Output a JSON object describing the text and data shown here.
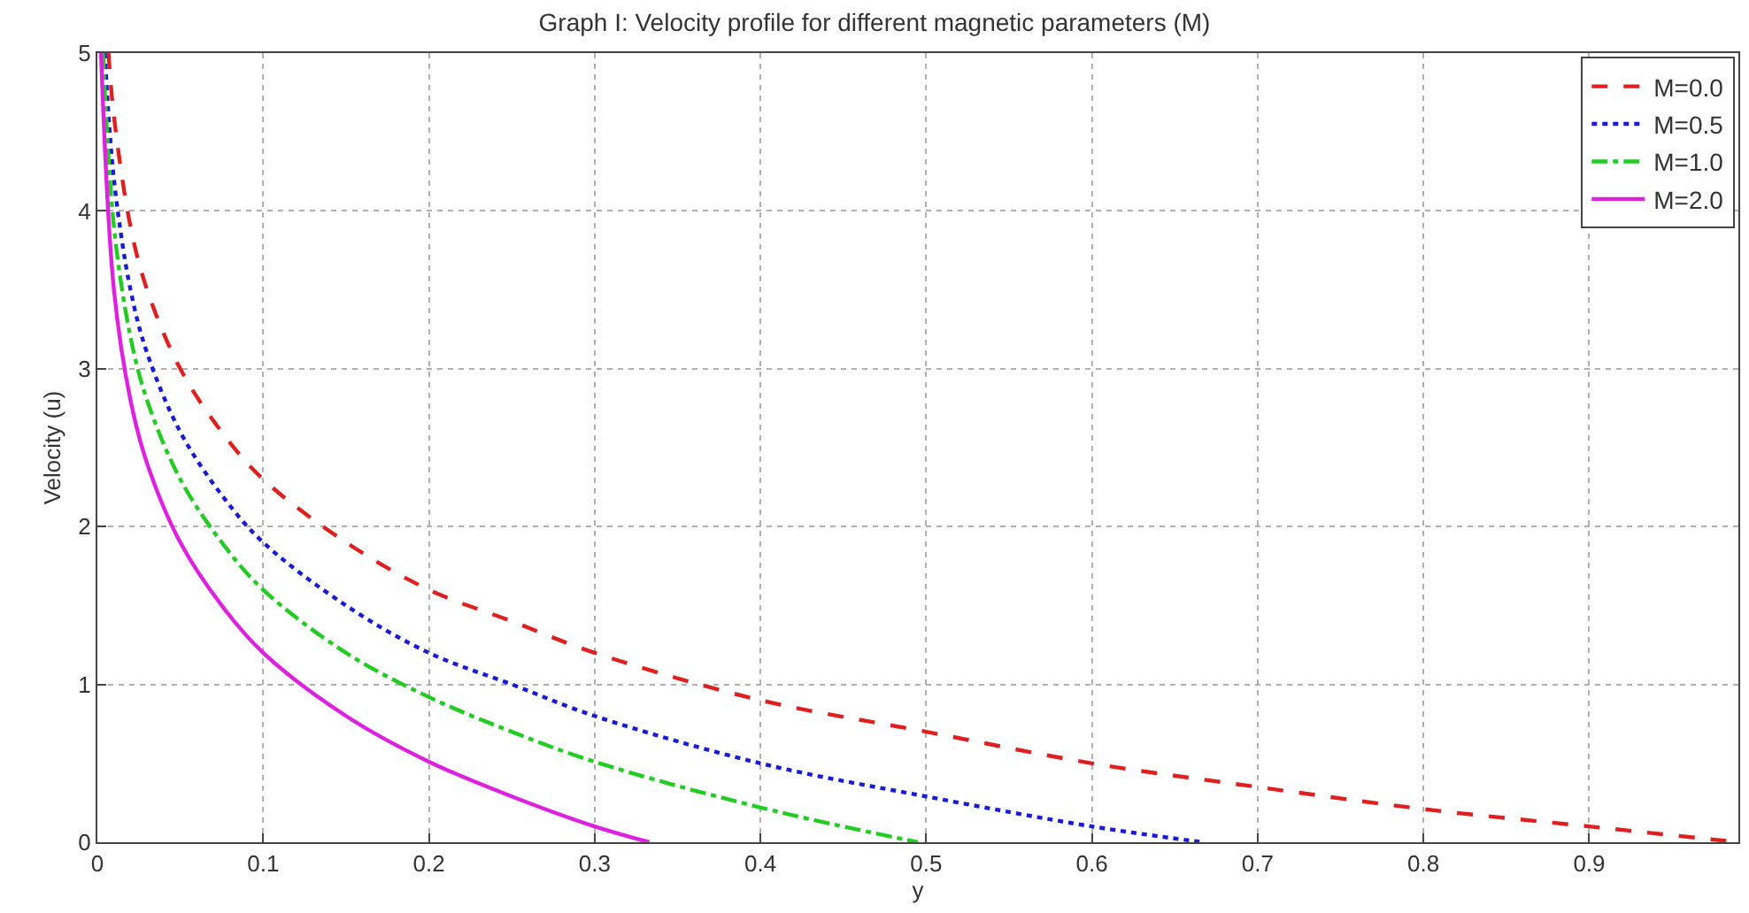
{
  "chart_data": {
    "type": "line",
    "title": "Graph I: Velocity profile for different magnetic parameters (M)",
    "xlabel": "y",
    "ylabel": "Velocity (u)",
    "xlim": [
      0,
      0.99
    ],
    "ylim": [
      0,
      5
    ],
    "xticks": [
      0,
      0.1,
      0.2,
      0.3,
      0.4,
      0.5,
      0.6,
      0.7,
      0.8,
      0.9
    ],
    "yticks": [
      0,
      1,
      2,
      3,
      4,
      5
    ],
    "grid": true,
    "legend": "top right",
    "marker": "none",
    "series": [
      {
        "name": "M=0.0",
        "color": "#e02020",
        "line_style": "dashed",
        "x": [
          0.0067,
          0.01,
          0.02,
          0.03,
          0.05,
          0.075,
          0.1,
          0.15,
          0.2,
          0.25,
          0.3,
          0.4,
          0.5,
          0.6,
          0.7,
          0.8,
          0.9,
          0.99
        ],
        "values": [
          5,
          4.6,
          3.9,
          3.5,
          3.0,
          2.6,
          2.3,
          1.9,
          1.6,
          1.4,
          1.2,
          0.9,
          0.7,
          0.5,
          0.35,
          0.21,
          0.1,
          0
        ]
      },
      {
        "name": "M=0.5",
        "color": "#1a1adb",
        "line_style": "dotted",
        "x": [
          0.0045,
          0.01,
          0.02,
          0.03,
          0.05,
          0.075,
          0.1,
          0.15,
          0.2,
          0.25,
          0.3,
          0.4,
          0.5,
          0.6,
          0.667
        ],
        "values": [
          5,
          4.2,
          3.5,
          3.1,
          2.6,
          2.2,
          1.9,
          1.5,
          1.2,
          1.0,
          0.8,
          0.5,
          0.29,
          0.1,
          0
        ]
      },
      {
        "name": "M=1.0",
        "color": "#22cc22",
        "line_style": "dashdot",
        "x": [
          0.0034,
          0.01,
          0.02,
          0.03,
          0.05,
          0.075,
          0.1,
          0.15,
          0.2,
          0.25,
          0.3,
          0.4,
          0.495
        ],
        "values": [
          5,
          3.9,
          3.2,
          2.8,
          2.3,
          1.9,
          1.6,
          1.2,
          0.92,
          0.7,
          0.51,
          0.22,
          0
        ]
      },
      {
        "name": "M=2.0",
        "color": "#e020e0",
        "line_style": "solid",
        "x": [
          0.0022,
          0.01,
          0.02,
          0.03,
          0.05,
          0.075,
          0.1,
          0.15,
          0.2,
          0.25,
          0.3,
          0.333
        ],
        "values": [
          5,
          3.5,
          2.8,
          2.4,
          1.9,
          1.5,
          1.2,
          0.8,
          0.51,
          0.29,
          0.1,
          0
        ]
      }
    ]
  }
}
